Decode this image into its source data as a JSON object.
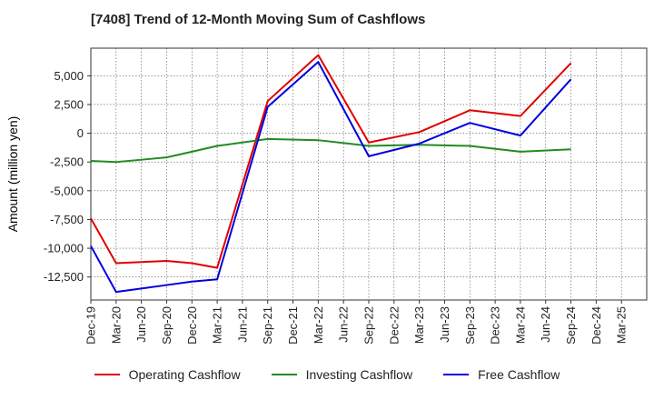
{
  "chart_data": {
    "type": "line",
    "title": "[7408]  Trend of 12-Month Moving Sum of Cashflows",
    "ylabel": "Amount (million yen)",
    "xlabel": "",
    "x": [
      "Dec-19",
      "Mar-20",
      "Jun-20",
      "Sep-20",
      "Dec-20",
      "Mar-21",
      "Jun-21",
      "Sep-21",
      "Dec-21",
      "Mar-22",
      "Jun-22",
      "Sep-22",
      "Dec-22",
      "Mar-23",
      "Jun-23",
      "Sep-23",
      "Dec-23",
      "Mar-24",
      "Jun-24",
      "Sep-24",
      "Dec-24",
      "Mar-25"
    ],
    "ylim": [
      -14500,
      7400
    ],
    "yticks": [
      5000,
      2500,
      0,
      -2500,
      -5000,
      -7500,
      -10000,
      -12500
    ],
    "ytick_labels": [
      "5,000",
      "2,500",
      "0",
      "-2,500",
      "-5,000",
      "-7,500",
      "-10,000",
      "-12,500"
    ],
    "grid": true,
    "legend_position": "bottom",
    "series": [
      {
        "name": "Operating Cashflow",
        "color": "#e00000",
        "values": [
          -7400,
          -11300,
          -11200,
          -11100,
          -11300,
          -11700,
          null,
          2800,
          null,
          6800,
          null,
          -800,
          null,
          100,
          null,
          2000,
          null,
          1500,
          null,
          6100,
          null,
          null
        ]
      },
      {
        "name": "Investing Cashflow",
        "color": "#228b22",
        "values": [
          -2400,
          -2500,
          -2300,
          -2100,
          -1600,
          -1100,
          null,
          -500,
          null,
          -600,
          null,
          -1100,
          null,
          -1000,
          null,
          -1100,
          null,
          -1600,
          null,
          -1400,
          null,
          null
        ]
      },
      {
        "name": "Free Cashflow",
        "color": "#0000dd",
        "values": [
          -9800,
          -13800,
          -13500,
          -13200,
          -12900,
          -12700,
          null,
          2300,
          null,
          6200,
          null,
          -2000,
          null,
          -900,
          null,
          900,
          null,
          -200,
          null,
          4700,
          null,
          null
        ]
      }
    ]
  }
}
